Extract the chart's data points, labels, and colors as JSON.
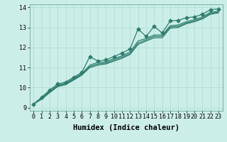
{
  "xlabel": "Humidex (Indice chaleur)",
  "ylabel": "",
  "background_color": "#cceee8",
  "grid_color": "#aaddcc",
  "line_color": "#2e7d6e",
  "xlim": [
    -0.5,
    23.5
  ],
  "ylim": [
    8.85,
    14.15
  ],
  "xticks": [
    0,
    1,
    2,
    3,
    4,
    5,
    6,
    7,
    8,
    9,
    10,
    11,
    12,
    13,
    14,
    15,
    16,
    17,
    18,
    19,
    20,
    21,
    22,
    23
  ],
  "yticks": [
    9,
    10,
    11,
    12,
    13,
    14
  ],
  "series": [
    [
      9.18,
      9.52,
      9.88,
      10.18,
      10.28,
      10.52,
      10.75,
      11.55,
      11.32,
      11.38,
      11.55,
      11.72,
      11.92,
      12.92,
      12.55,
      13.05,
      12.72,
      13.32,
      13.35,
      13.48,
      13.52,
      13.65,
      13.88,
      13.92
    ],
    [
      9.18,
      9.48,
      9.82,
      10.12,
      10.22,
      10.46,
      10.7,
      11.12,
      11.25,
      11.28,
      11.45,
      11.58,
      11.78,
      12.32,
      12.45,
      12.62,
      12.62,
      13.08,
      13.12,
      13.28,
      13.38,
      13.52,
      13.75,
      13.8
    ],
    [
      9.18,
      9.45,
      9.78,
      10.08,
      10.18,
      10.42,
      10.65,
      11.05,
      11.18,
      11.22,
      11.38,
      11.52,
      11.7,
      12.22,
      12.38,
      12.55,
      12.55,
      13.02,
      13.05,
      13.22,
      13.32,
      13.46,
      13.7,
      13.76
    ],
    [
      9.18,
      9.42,
      9.75,
      10.05,
      10.15,
      10.38,
      10.62,
      11.0,
      11.12,
      11.18,
      11.32,
      11.46,
      11.65,
      12.15,
      12.32,
      12.48,
      12.48,
      12.96,
      13.0,
      13.18,
      13.28,
      13.42,
      13.65,
      13.72
    ]
  ],
  "marker": "D",
  "marker_size": 2.5,
  "linewidth": 0.9,
  "fontsize_ticks": 6,
  "fontsize_label": 7.5
}
